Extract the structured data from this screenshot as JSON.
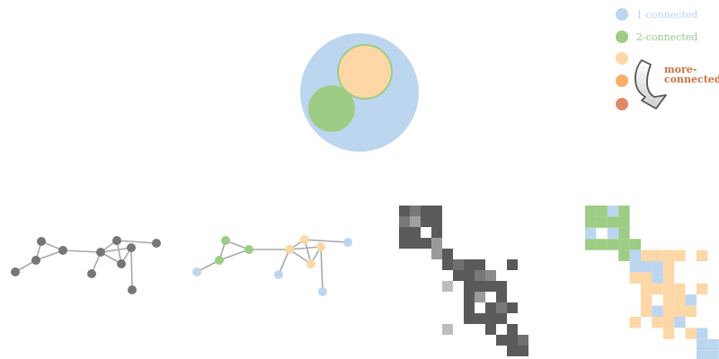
{
  "colors": {
    "one_connected": "#bdd6f0",
    "two_connected": "#9dcc84",
    "level3": "#fdd7a6",
    "level4": "#f8b06a",
    "level5": "#e08a64",
    "gray_node": "#767676",
    "gray_edge": "#a8a8a8",
    "arrow_text": "#d2703e",
    "label_one": "#bcd4ee",
    "label_two": "#98c986"
  },
  "legend": {
    "one_connected": "1-connected",
    "two_connected": "2-connected",
    "more_connected_line1": "more-",
    "more_connected_line2": "connected",
    "arrow_icon": "curved-down-arrow"
  },
  "graph": {
    "nodes": [
      {
        "id": "a",
        "c2": "one"
      },
      {
        "id": "b",
        "c2": "two"
      },
      {
        "id": "c",
        "c2": "two"
      },
      {
        "id": "d",
        "c2": "two"
      },
      {
        "id": "e",
        "c2": "more"
      },
      {
        "id": "f",
        "c2": "more"
      },
      {
        "id": "g",
        "c2": "more"
      },
      {
        "id": "h",
        "c2": "more"
      },
      {
        "id": "i",
        "c2": "one"
      },
      {
        "id": "j",
        "c2": "one"
      },
      {
        "id": "k",
        "c2": "one"
      }
    ],
    "edges": [
      [
        "a",
        "b"
      ],
      [
        "b",
        "c"
      ],
      [
        "b",
        "d"
      ],
      [
        "c",
        "d"
      ],
      [
        "d",
        "e"
      ],
      [
        "e",
        "f"
      ],
      [
        "e",
        "g"
      ],
      [
        "f",
        "g"
      ],
      [
        "e",
        "h"
      ],
      [
        "g",
        "h"
      ],
      [
        "f",
        "k"
      ],
      [
        "e",
        "i"
      ],
      [
        "h",
        "j"
      ]
    ]
  },
  "matrix_gray": {
    "cells": [
      [
        0,
        0,
        "#5a5a5a"
      ],
      [
        1,
        0,
        "#787878"
      ],
      [
        2,
        0,
        "#5a5a5a"
      ],
      [
        3,
        0,
        "#5a5a5a"
      ],
      [
        0,
        1,
        "#787878"
      ],
      [
        1,
        1,
        "#a0a0a0"
      ],
      [
        2,
        1,
        "#5a5a5a"
      ],
      [
        3,
        1,
        "#5a5a5a"
      ],
      [
        0,
        2,
        "#5a5a5a"
      ],
      [
        1,
        2,
        "#5a5a5a"
      ],
      [
        3,
        2,
        "#5a5a5a"
      ],
      [
        0,
        3,
        "#5a5a5a"
      ],
      [
        1,
        3,
        "#5a5a5a"
      ],
      [
        2,
        3,
        "#5a5a5a"
      ],
      [
        3,
        3,
        "#9a9a9a"
      ],
      [
        3,
        4,
        "#9a9a9a"
      ],
      [
        4,
        4,
        "#5a5a5a"
      ],
      [
        4,
        5,
        "#5a5a5a"
      ],
      [
        5,
        5,
        "#707070"
      ],
      [
        6,
        5,
        "#5a5a5a"
      ],
      [
        7,
        5,
        "#5a5a5a"
      ],
      [
        10,
        5,
        "#5a5a5a"
      ],
      [
        5,
        6,
        "#5a5a5a"
      ],
      [
        6,
        6,
        "#5a5a5a"
      ],
      [
        7,
        6,
        "#787878"
      ],
      [
        8,
        6,
        "#8a8a8a"
      ],
      [
        4,
        7,
        "#bdbdbd"
      ],
      [
        6,
        7,
        "#5a5a5a"
      ],
      [
        7,
        7,
        "#5a5a5a"
      ],
      [
        8,
        7,
        "#5a5a5a"
      ],
      [
        9,
        7,
        "#5a5a5a"
      ],
      [
        6,
        8,
        "#5a5a5a"
      ],
      [
        7,
        8,
        "#9a9a9a"
      ],
      [
        9,
        8,
        "#5a5a5a"
      ],
      [
        6,
        9,
        "#5a5a5a"
      ],
      [
        8,
        9,
        "#5a5a5a"
      ],
      [
        9,
        9,
        "#787878"
      ],
      [
        10,
        9,
        "#5a5a5a"
      ],
      [
        6,
        10,
        "#5a5a5a"
      ],
      [
        7,
        10,
        "#5a5a5a"
      ],
      [
        8,
        10,
        "#5a5a5a"
      ],
      [
        9,
        10,
        "#5a5a5a"
      ],
      [
        4,
        11,
        "#bdbdbd"
      ],
      [
        8,
        11,
        "#5a5a5a"
      ],
      [
        10,
        11,
        "#5a5a5a"
      ],
      [
        9,
        12,
        "#5a5a5a"
      ],
      [
        10,
        12,
        "#5a5a5a"
      ],
      [
        11,
        12,
        "#707070"
      ],
      [
        10,
        13,
        "#5a5a5a"
      ],
      [
        11,
        13,
        "#5a5a5a"
      ]
    ]
  },
  "matrix_color": {
    "cells": [
      [
        0,
        0,
        "#9dcc84"
      ],
      [
        1,
        0,
        "#9dcc84"
      ],
      [
        2,
        0,
        "#bdd6f0"
      ],
      [
        3,
        0,
        "#9dcc84"
      ],
      [
        0,
        1,
        "#9dcc84"
      ],
      [
        1,
        1,
        "#9dcc84"
      ],
      [
        2,
        1,
        "#9dcc84"
      ],
      [
        3,
        1,
        "#9dcc84"
      ],
      [
        0,
        2,
        "#bdd6f0"
      ],
      [
        2,
        2,
        "#bdd6f0"
      ],
      [
        3,
        2,
        "#9dcc84"
      ],
      [
        0,
        3,
        "#9dcc84"
      ],
      [
        1,
        3,
        "#9dcc84"
      ],
      [
        2,
        3,
        "#9dcc84"
      ],
      [
        3,
        3,
        "#9dcc84"
      ],
      [
        4,
        3,
        "#9dcc84"
      ],
      [
        3,
        4,
        "#9dcc84"
      ],
      [
        4,
        4,
        "#bdd6f0"
      ],
      [
        5,
        4,
        "#fdd7a6"
      ],
      [
        6,
        4,
        "#fdd7a6"
      ],
      [
        7,
        4,
        "#fdd7a6"
      ],
      [
        8,
        4,
        "#fdd7a6"
      ],
      [
        10,
        4,
        "#fdd7a6"
      ],
      [
        4,
        5,
        "#bdd6f0"
      ],
      [
        5,
        5,
        "#bdd6f0"
      ],
      [
        6,
        5,
        "#bdd6f0"
      ],
      [
        7,
        5,
        "#fdd7a6"
      ],
      [
        4,
        6,
        "#fdd7a6"
      ],
      [
        5,
        6,
        "#fdd7a6"
      ],
      [
        6,
        6,
        "#bdd6f0"
      ],
      [
        7,
        6,
        "#fdd7a6"
      ],
      [
        5,
        7,
        "#fdd7a6"
      ],
      [
        6,
        7,
        "#fdd7a6"
      ],
      [
        7,
        7,
        "#fdd7a6"
      ],
      [
        8,
        7,
        "#fdd7a6"
      ],
      [
        10,
        7,
        "#fdd7a6"
      ],
      [
        5,
        8,
        "#fdd7a6"
      ],
      [
        7,
        8,
        "#fdd7a6"
      ],
      [
        8,
        8,
        "#fdd7a6"
      ],
      [
        9,
        8,
        "#bdd6f0"
      ],
      [
        5,
        9,
        "#fdd7a6"
      ],
      [
        6,
        9,
        "#bdd6f0"
      ],
      [
        7,
        9,
        "#fdd7a6"
      ],
      [
        8,
        9,
        "#fdd7a6"
      ],
      [
        9,
        9,
        "#fdd7a6"
      ],
      [
        4,
        10,
        "#fdd7a6"
      ],
      [
        6,
        10,
        "#fdd7a6"
      ],
      [
        7,
        10,
        "#fdd7a6"
      ],
      [
        8,
        10,
        "#bdd6f0"
      ],
      [
        7,
        11,
        "#fdd7a6"
      ],
      [
        9,
        11,
        "#fdd7a6"
      ],
      [
        10,
        11,
        "#bdd6f0"
      ],
      [
        10,
        12,
        "#bdd6f0"
      ],
      [
        11,
        12,
        "#bdd6f0"
      ],
      [
        10,
        13,
        "#bdd6f0"
      ],
      [
        11,
        13,
        "#bdd6f0"
      ]
    ]
  }
}
